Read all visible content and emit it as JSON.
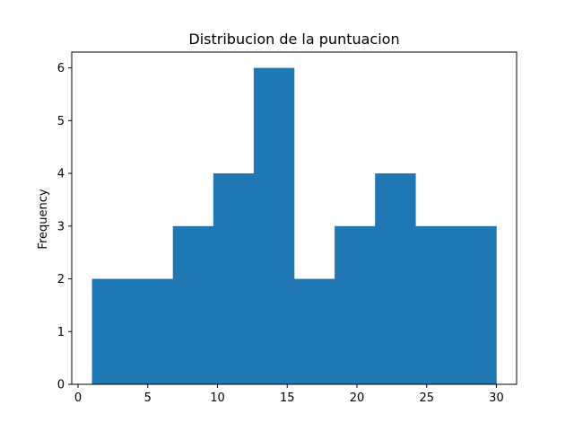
{
  "chart_data": {
    "type": "bar",
    "title": "Distribucion de la puntuacion",
    "xlabel": "",
    "ylabel": "Frequency",
    "bin_edges": [
      1,
      3.9,
      6.8,
      9.7,
      12.6,
      15.5,
      18.4,
      21.3,
      24.2,
      27.1,
      30
    ],
    "values": [
      2,
      2,
      3,
      4,
      6,
      2,
      3,
      4,
      3,
      3
    ],
    "xlim": [
      -0.45,
      31.45
    ],
    "ylim": [
      0,
      6.3
    ],
    "xticks": [
      0,
      5,
      10,
      15,
      20,
      25,
      30
    ],
    "yticks": [
      0,
      1,
      2,
      3,
      4,
      5,
      6
    ],
    "xtick_labels": [
      "0",
      "5",
      "10",
      "15",
      "20",
      "25",
      "30"
    ],
    "ytick_labels": [
      "0",
      "1",
      "2",
      "3",
      "4",
      "5",
      "6"
    ],
    "bar_color": "#1f77b4",
    "grid": false,
    "legend": "none"
  }
}
